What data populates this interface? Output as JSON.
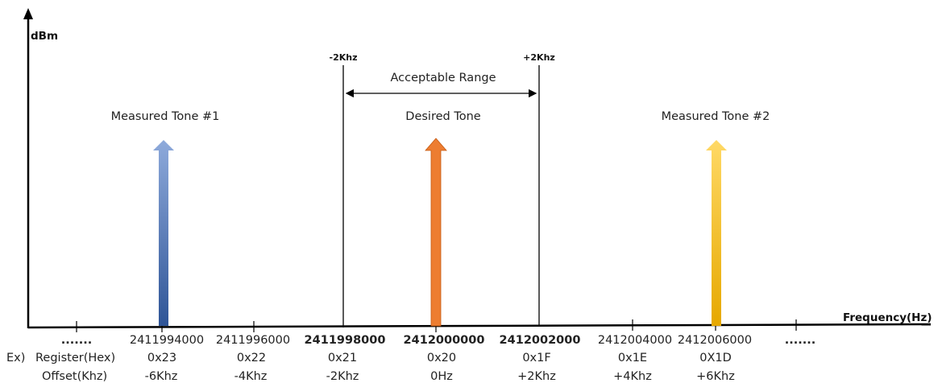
{
  "y_axis_label": "dBm",
  "x_axis_label": "Frequency(Hz)",
  "range": {
    "left_marker": "-2Khz",
    "right_marker": "+2Khz",
    "label": "Acceptable Range"
  },
  "tones": [
    {
      "label": "Measured Tone #1",
      "frequency": 2411994000,
      "color_top": "#8eaadb",
      "color_bottom": "#2f5597"
    },
    {
      "label": "Desired Tone",
      "frequency": 2412000000,
      "color_top": "#ed7d31",
      "color_bottom": "#ed7d31"
    },
    {
      "label": "Measured Tone #2",
      "frequency": 2412006000,
      "color_top": "#ffd966",
      "color_bottom": "#e6a800"
    }
  ],
  "ellipsis_left": ".......",
  "ellipsis_right": ".......",
  "frequencies": [
    {
      "text": "2411994000",
      "bold": false
    },
    {
      "text": "2411996000",
      "bold": false
    },
    {
      "text": "2411998000",
      "bold": true
    },
    {
      "text": "2412000000",
      "bold": true
    },
    {
      "text": "2412002000",
      "bold": true
    },
    {
      "text": "2412004000",
      "bold": false
    },
    {
      "text": "2412006000",
      "bold": false
    }
  ],
  "table": {
    "prefix": "Ex)",
    "register_label": "Register(Hex)",
    "offset_label": "Offset(Khz)",
    "registers": [
      "0x23",
      "0x22",
      "0x21",
      "0x20",
      "0x1F",
      "0x1E",
      "0X1D"
    ],
    "offsets": [
      "-6Khz",
      "-4Khz",
      "-2Khz",
      "0Hz",
      "+2Khz",
      "+4Khz",
      "+6Khz"
    ]
  }
}
